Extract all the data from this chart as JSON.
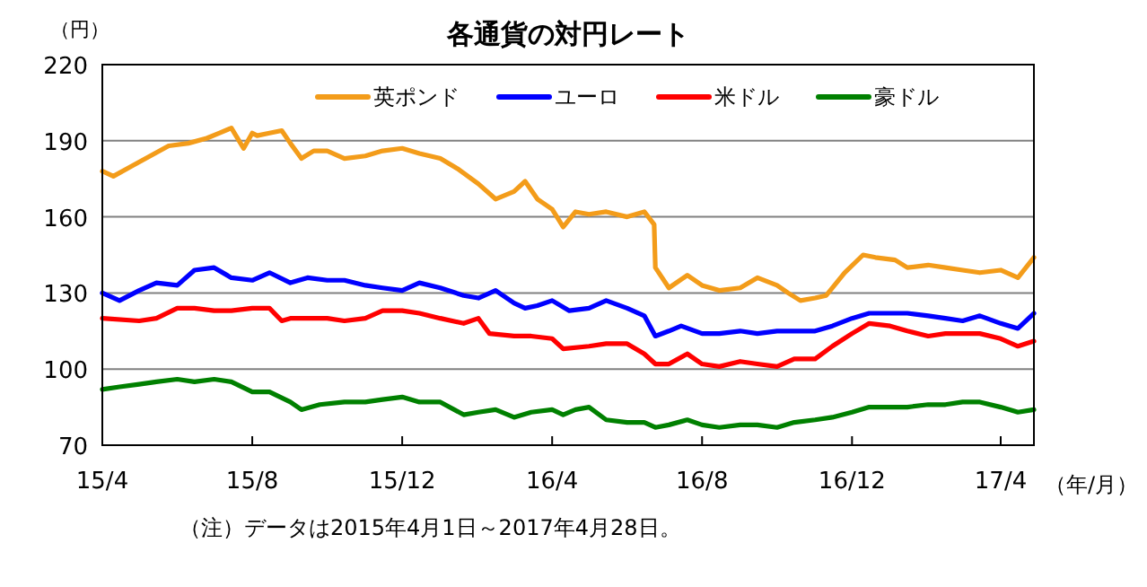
{
  "chart_data": {
    "type": "line",
    "title": "各通貨の対円レート",
    "ylabel": "（円）",
    "xlabel": "（年/月）",
    "annotations": [
      "（注）データは2015年4月1日～2017年4月28日。"
    ],
    "xlim": [
      "2015-04-01",
      "2017-04-28"
    ],
    "xticks": [
      {
        "value": "2015-04-01",
        "label": "15/4"
      },
      {
        "value": "2015-08-01",
        "label": "15/8"
      },
      {
        "value": "2015-12-01",
        "label": "15/12"
      },
      {
        "value": "2016-04-01",
        "label": "16/4"
      },
      {
        "value": "2016-08-01",
        "label": "16/8"
      },
      {
        "value": "2016-12-01",
        "label": "16/12"
      },
      {
        "value": "2017-04-01",
        "label": "17/4"
      }
    ],
    "ylim": [
      70,
      220
    ],
    "yticks": [
      70,
      100,
      130,
      160,
      190,
      220
    ],
    "grid": "y",
    "legend": "top",
    "line_style": "solid",
    "marker": "none",
    "series": [
      {
        "name": "英ポンド",
        "color": "#f39c1a",
        "x": [
          "2015-04-01",
          "2015-04-10",
          "2015-04-25",
          "2015-05-10",
          "2015-05-25",
          "2015-06-10",
          "2015-06-25",
          "2015-07-05",
          "2015-07-15",
          "2015-07-25",
          "2015-08-01",
          "2015-08-05",
          "2015-08-15",
          "2015-08-25",
          "2015-09-01",
          "2015-09-10",
          "2015-09-20",
          "2015-10-01",
          "2015-10-15",
          "2015-11-01",
          "2015-11-15",
          "2015-12-01",
          "2015-12-15",
          "2016-01-01",
          "2016-01-15",
          "2016-02-01",
          "2016-02-15",
          "2016-03-01",
          "2016-03-10",
          "2016-03-20",
          "2016-04-01",
          "2016-04-10",
          "2016-04-20",
          "2016-05-01",
          "2016-05-15",
          "2016-06-01",
          "2016-06-15",
          "2016-06-23",
          "2016-06-24",
          "2016-07-05",
          "2016-07-20",
          "2016-08-01",
          "2016-08-15",
          "2016-09-01",
          "2016-09-15",
          "2016-10-01",
          "2016-10-10",
          "2016-10-20",
          "2016-11-01",
          "2016-11-10",
          "2016-11-25",
          "2016-12-10",
          "2016-12-20",
          "2017-01-05",
          "2017-01-15",
          "2017-02-01",
          "2017-02-15",
          "2017-03-01",
          "2017-03-15",
          "2017-04-01",
          "2017-04-15",
          "2017-04-28"
        ],
        "values": [
          178,
          176,
          180,
          184,
          188,
          189,
          191,
          193,
          195,
          187,
          193,
          192,
          193,
          194,
          189,
          183,
          186,
          186,
          183,
          184,
          186,
          187,
          185,
          183,
          179,
          173,
          167,
          170,
          174,
          167,
          163,
          156,
          162,
          161,
          162,
          160,
          162,
          157,
          140,
          132,
          137,
          133,
          131,
          132,
          136,
          133,
          130,
          127,
          128,
          129,
          138,
          145,
          144,
          143,
          140,
          141,
          140,
          139,
          138,
          139,
          136,
          144
        ]
      },
      {
        "name": "ユーロ",
        "color": "#0000ff",
        "x": [
          "2015-04-01",
          "2015-04-15",
          "2015-05-01",
          "2015-05-15",
          "2015-06-01",
          "2015-06-15",
          "2015-07-01",
          "2015-07-15",
          "2015-08-01",
          "2015-08-15",
          "2015-09-01",
          "2015-09-15",
          "2015-10-01",
          "2015-10-15",
          "2015-11-01",
          "2015-11-15",
          "2015-12-01",
          "2015-12-15",
          "2016-01-01",
          "2016-01-20",
          "2016-02-01",
          "2016-02-15",
          "2016-03-01",
          "2016-03-10",
          "2016-03-20",
          "2016-04-01",
          "2016-04-15",
          "2016-05-01",
          "2016-05-15",
          "2016-06-01",
          "2016-06-15",
          "2016-06-24",
          "2016-07-05",
          "2016-07-15",
          "2016-08-01",
          "2016-08-15",
          "2016-09-01",
          "2016-09-15",
          "2016-10-01",
          "2016-10-15",
          "2016-11-01",
          "2016-11-15",
          "2016-12-01",
          "2016-12-15",
          "2017-01-01",
          "2017-01-15",
          "2017-02-01",
          "2017-02-15",
          "2017-03-01",
          "2017-03-15",
          "2017-04-01",
          "2017-04-15",
          "2017-04-28"
        ],
        "values": [
          130,
          127,
          131,
          134,
          133,
          139,
          140,
          136,
          135,
          138,
          134,
          136,
          135,
          135,
          133,
          132,
          131,
          134,
          132,
          129,
          128,
          131,
          126,
          124,
          125,
          127,
          123,
          124,
          127,
          124,
          121,
          113,
          115,
          117,
          114,
          114,
          115,
          114,
          115,
          115,
          115,
          117,
          120,
          122,
          122,
          122,
          121,
          120,
          119,
          121,
          118,
          116,
          122
        ]
      },
      {
        "name": "米ドル",
        "color": "#ff0000",
        "x": [
          "2015-04-01",
          "2015-05-01",
          "2015-05-15",
          "2015-06-01",
          "2015-06-15",
          "2015-07-01",
          "2015-07-15",
          "2015-08-01",
          "2015-08-15",
          "2015-08-25",
          "2015-09-01",
          "2015-09-15",
          "2015-10-01",
          "2015-10-15",
          "2015-11-01",
          "2015-11-15",
          "2015-12-01",
          "2015-12-15",
          "2016-01-01",
          "2016-01-20",
          "2016-02-01",
          "2016-02-10",
          "2016-03-01",
          "2016-03-15",
          "2016-04-01",
          "2016-04-10",
          "2016-05-01",
          "2016-05-15",
          "2016-06-01",
          "2016-06-15",
          "2016-06-24",
          "2016-07-05",
          "2016-07-20",
          "2016-08-01",
          "2016-08-15",
          "2016-09-01",
          "2016-09-15",
          "2016-10-01",
          "2016-10-15",
          "2016-11-01",
          "2016-11-15",
          "2016-12-01",
          "2016-12-15",
          "2017-01-01",
          "2017-01-15",
          "2017-02-01",
          "2017-02-15",
          "2017-03-01",
          "2017-03-15",
          "2017-04-01",
          "2017-04-15",
          "2017-04-28"
        ],
        "values": [
          120,
          119,
          120,
          124,
          124,
          123,
          123,
          124,
          124,
          119,
          120,
          120,
          120,
          119,
          120,
          123,
          123,
          122,
          120,
          118,
          120,
          114,
          113,
          113,
          112,
          108,
          109,
          110,
          110,
          106,
          102,
          102,
          106,
          102,
          101,
          103,
          102,
          101,
          104,
          104,
          109,
          114,
          118,
          117,
          115,
          113,
          114,
          114,
          114,
          112,
          109,
          111
        ]
      },
      {
        "name": "豪ドル",
        "color": "#008000",
        "x": [
          "2015-04-01",
          "2015-04-15",
          "2015-05-01",
          "2015-05-15",
          "2015-06-01",
          "2015-06-15",
          "2015-07-01",
          "2015-07-15",
          "2015-08-01",
          "2015-08-15",
          "2015-09-01",
          "2015-09-10",
          "2015-09-25",
          "2015-10-15",
          "2015-11-01",
          "2015-11-15",
          "2015-12-01",
          "2015-12-15",
          "2016-01-01",
          "2016-01-20",
          "2016-02-01",
          "2016-02-15",
          "2016-03-01",
          "2016-03-15",
          "2016-04-01",
          "2016-04-10",
          "2016-04-20",
          "2016-05-01",
          "2016-05-15",
          "2016-06-01",
          "2016-06-15",
          "2016-06-24",
          "2016-07-05",
          "2016-07-20",
          "2016-08-01",
          "2016-08-15",
          "2016-09-01",
          "2016-09-15",
          "2016-10-01",
          "2016-10-15",
          "2016-11-01",
          "2016-11-15",
          "2016-12-01",
          "2016-12-15",
          "2017-01-01",
          "2017-01-15",
          "2017-02-01",
          "2017-02-15",
          "2017-03-01",
          "2017-03-15",
          "2017-04-01",
          "2017-04-15",
          "2017-04-28"
        ],
        "values": [
          92,
          93,
          94,
          95,
          96,
          95,
          96,
          95,
          91,
          91,
          87,
          84,
          86,
          87,
          87,
          88,
          89,
          87,
          87,
          82,
          83,
          84,
          81,
          83,
          84,
          82,
          84,
          85,
          80,
          79,
          79,
          77,
          78,
          80,
          78,
          77,
          78,
          78,
          77,
          79,
          80,
          81,
          83,
          85,
          85,
          85,
          86,
          86,
          87,
          87,
          85,
          83,
          84
        ]
      }
    ]
  }
}
